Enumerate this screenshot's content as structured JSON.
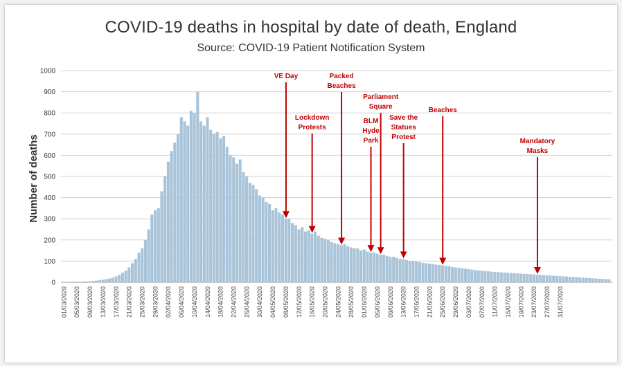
{
  "chart_data": {
    "type": "bar",
    "title": "COVID-19 deaths in hospital by date of death, England",
    "subtitle": "Source: COVID-19 Patient Notification System",
    "xlabel": "",
    "ylabel": "Number of deaths",
    "ylim": [
      0,
      1000
    ],
    "yticks": [
      0,
      100,
      200,
      300,
      400,
      500,
      600,
      700,
      800,
      900,
      1000
    ],
    "grid": true,
    "bar_color": "#a9c4d8",
    "annotation_color": "#c00000",
    "x_tick_labels": [
      "01/03/2020",
      "05/03/2020",
      "09/03/2020",
      "13/03/2020",
      "17/03/2020",
      "21/03/2020",
      "25/03/2020",
      "29/03/2020",
      "02/04/2020",
      "06/04/2020",
      "10/04/2020",
      "14/04/2020",
      "18/04/2020",
      "22/04/2020",
      "26/04/2020",
      "30/04/2020",
      "04/05/2020",
      "08/05/2020",
      "12/05/2020",
      "16/05/2020",
      "20/05/2020",
      "24/05/2020",
      "28/05/2020",
      "01/06/2020",
      "05/06/2020",
      "09/06/2020",
      "13/06/2020",
      "17/06/2020",
      "21/06/2020",
      "25/06/2020",
      "29/06/2020",
      "03/07/2020",
      "07/07/2020",
      "11/07/2020",
      "15/07/2020",
      "19/07/2020",
      "23/07/2020",
      "27/07/2020",
      "31/07/2020"
    ],
    "dates_start": "01/03/2020",
    "values": [
      2,
      2,
      2,
      3,
      3,
      3,
      4,
      4,
      5,
      6,
      8,
      10,
      12,
      15,
      18,
      22,
      28,
      35,
      45,
      55,
      70,
      90,
      110,
      140,
      160,
      200,
      250,
      320,
      340,
      350,
      430,
      500,
      570,
      620,
      660,
      700,
      780,
      760,
      740,
      810,
      800,
      900,
      760,
      740,
      780,
      720,
      700,
      710,
      680,
      690,
      640,
      600,
      590,
      560,
      580,
      520,
      500,
      470,
      460,
      440,
      410,
      400,
      380,
      370,
      340,
      350,
      330,
      320,
      300,
      300,
      280,
      270,
      250,
      260,
      240,
      245,
      230,
      240,
      220,
      210,
      205,
      200,
      190,
      185,
      180,
      175,
      180,
      170,
      165,
      160,
      160,
      150,
      155,
      145,
      140,
      140,
      135,
      130,
      130,
      125,
      120,
      120,
      115,
      110,
      110,
      105,
      100,
      100,
      98,
      95,
      92,
      90,
      88,
      86,
      84,
      82,
      80,
      78,
      76,
      72,
      70,
      68,
      66,
      64,
      62,
      60,
      58,
      56,
      55,
      53,
      52,
      50,
      49,
      48,
      47,
      46,
      45,
      44,
      43,
      42,
      41,
      40,
      39,
      38,
      37,
      36,
      35,
      34,
      33,
      32,
      31,
      30,
      29,
      28,
      27,
      26,
      25,
      24,
      23,
      22,
      21,
      20,
      19,
      18,
      17,
      16,
      15,
      14
    ]
  },
  "annotations": [
    {
      "lines": [
        "VE Day"
      ],
      "date": "08/05/2020"
    },
    {
      "lines": [
        "Lockdown",
        "Protests"
      ],
      "date": "16/05/2020"
    },
    {
      "lines": [
        "Packed",
        "Beaches"
      ],
      "date": "25/05/2020"
    },
    {
      "lines": [
        "BLM",
        "Hyde",
        "Park"
      ],
      "date": "03/06/2020"
    },
    {
      "lines": [
        "Parliament",
        "Square"
      ],
      "date": "06/06/2020"
    },
    {
      "lines": [
        "Save the",
        "Statues",
        "Protest"
      ],
      "date": "13/06/2020"
    },
    {
      "lines": [
        "Beaches"
      ],
      "date": "25/06/2020"
    },
    {
      "lines": [
        "Mandatory",
        "Masks"
      ],
      "date": "24/07/2020"
    }
  ]
}
